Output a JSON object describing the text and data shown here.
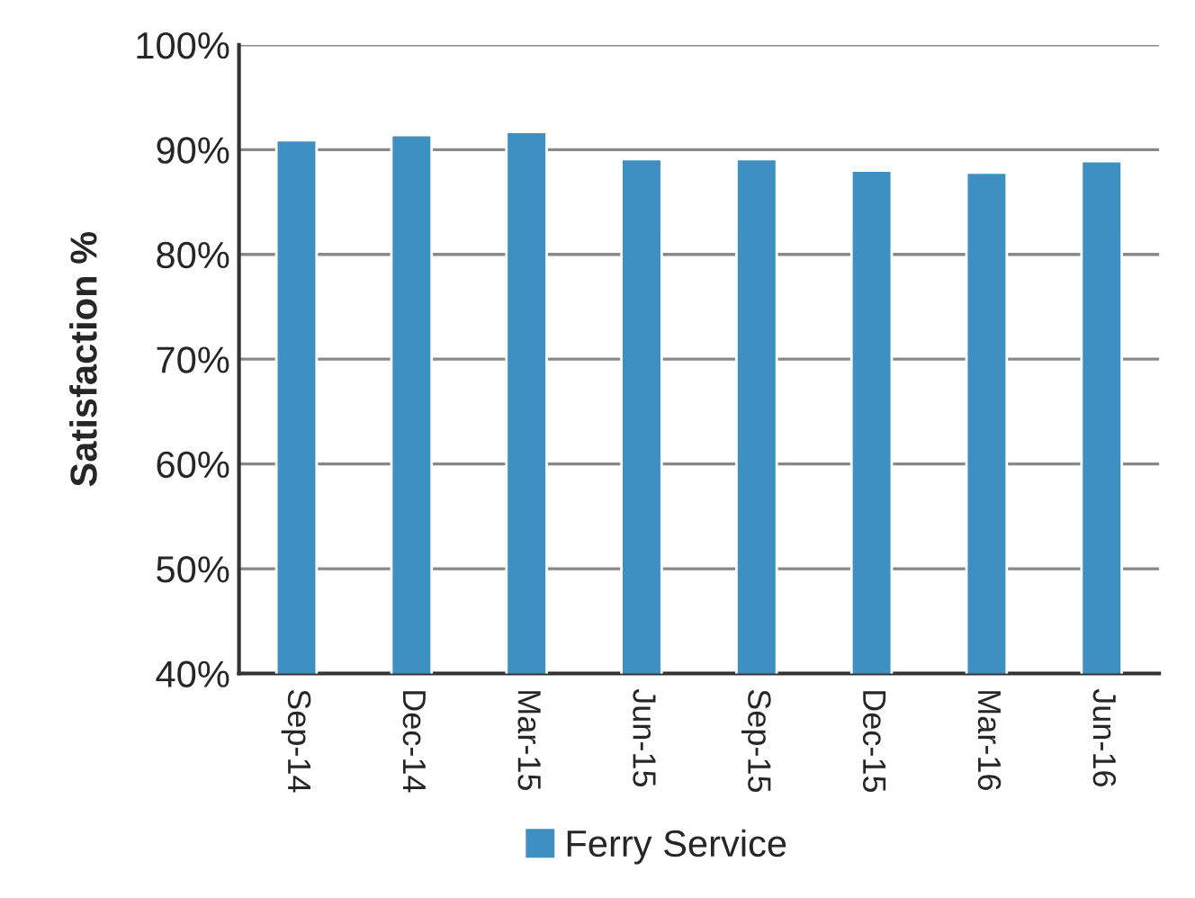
{
  "chart_data": {
    "type": "bar",
    "ylabel": "Satisfaction %",
    "categories": [
      "Sep-14",
      "Dec-14",
      "Mar-15",
      "Jun-15",
      "Sep-15",
      "Dec-15",
      "Mar-16",
      "Jun-16"
    ],
    "series": [
      {
        "name": "Ferry Service",
        "color": "#3e8fc2",
        "values": [
          0.909,
          0.914,
          0.917,
          0.891,
          0.891,
          0.88,
          0.878,
          0.889
        ]
      }
    ],
    "ylim": [
      0.4,
      1.0
    ],
    "yticks": [
      {
        "value": 0.4,
        "label": "40%"
      },
      {
        "value": 0.5,
        "label": "50%"
      },
      {
        "value": 0.6,
        "label": "60%"
      },
      {
        "value": 0.7,
        "label": "70%"
      },
      {
        "value": 0.8,
        "label": "80%"
      },
      {
        "value": 0.9,
        "label": "90%"
      },
      {
        "value": 1.0,
        "label": "100%"
      }
    ],
    "grid": "y",
    "legend": "bottom"
  }
}
